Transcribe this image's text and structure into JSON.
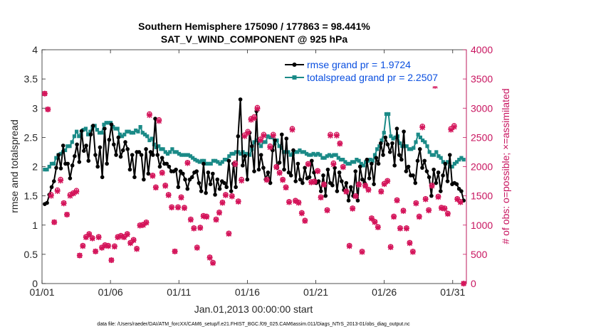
{
  "chart_data": {
    "type": "line",
    "title_line1": "Southern Hemisphere 175090 / 177863 = 98.441%",
    "title_line2": "SAT_V_WIND_COMPONENT @ 925 hPa",
    "ylabel_left": "rmse and totalspread",
    "ylabel_right": "# of obs: o=possible; ×=assimilated",
    "xlabel": "Jan.01,2013 00:00:00 start",
    "footnote": "data file: /Users/raeder/DAI/ATM_forcXX/CAM6_setup/f.e21.FHIST_BGC.f09_025.CAM6assim.011/Diags_NTrS_2013-01/obs_diag_output.nc",
    "x_ticks": [
      "01/01",
      "01/06",
      "01/11",
      "01/16",
      "01/21",
      "01/26",
      "01/31"
    ],
    "x_tick_days": [
      1,
      6,
      11,
      16,
      21,
      26,
      31
    ],
    "xlim": [
      1,
      32
    ],
    "yleft_ticks": [
      "0",
      "0.5",
      "1",
      "1.5",
      "2",
      "2.5",
      "3",
      "3.5",
      "4"
    ],
    "yleft_lim": [
      0,
      4
    ],
    "yright_ticks": [
      "0",
      "500",
      "1000",
      "1500",
      "2000",
      "2500",
      "3000",
      "3500",
      "4000"
    ],
    "yright_lim": [
      0,
      4000
    ],
    "legend": [
      {
        "label": "rmse grand pr = 1.9724",
        "color": "#000000"
      },
      {
        "label": "totalspread grand pr = 2.2507",
        "color": "#1a8a87"
      }
    ],
    "colors": {
      "rmse": "#000000",
      "spread": "#1a8a87",
      "obs": "#d4145a",
      "legend_text": "#0a4fe0",
      "right_axis": "#c8145f"
    },
    "series": [
      {
        "name": "rmse",
        "values": [
          1.36,
          1.38,
          1.52,
          1.65,
          1.75,
          1.98,
          2.2,
          1.97,
          2.36,
          2.05,
          2.05,
          1.8,
          2.02,
          2.18,
          2.38,
          2.08,
          2.61,
          2.27,
          2.36,
          2.1,
          2.55,
          2.7,
          2.2,
          2.0,
          2.33,
          1.82,
          2.65,
          2.05,
          2.46,
          2.72,
          2.38,
          2.2,
          2.5,
          2.17,
          2.28,
          2.42,
          2.3,
          1.95,
          2.2,
          1.82,
          2.25,
          2.25,
          2.2,
          1.78,
          2.3,
          1.88,
          2.25,
          2.2,
          2.82,
          2.2,
          2.0,
          2.15,
          2.05,
          2.05,
          2.0,
          1.92,
          1.92,
          1.95,
          1.65,
          1.92,
          1.88,
          1.78,
          1.62,
          1.78,
          1.82,
          1.9,
          1.92,
          1.72,
          1.58,
          2.05,
          1.55,
          1.9,
          1.7,
          1.88,
          1.52,
          1.78,
          1.62,
          1.75,
          1.72,
          1.65,
          2.1,
          1.58,
          2.05,
          1.65,
          2.52,
          3.15,
          2.02,
          2.18,
          1.78,
          2.58,
          2.35,
          1.92,
          2.95,
          1.95,
          2.2,
          1.98,
          1.78,
          1.9,
          1.72,
          2.28,
          2.45,
          1.98,
          2.07,
          2.55,
          1.95,
          2.48,
          1.9,
          1.85,
          2.28,
          1.75,
          2.05,
          1.78,
          1.72,
          1.98,
          1.8,
          1.82,
          2.1,
          1.9,
          1.72,
          1.75,
          1.58,
          1.85,
          1.5,
          1.95,
          1.72,
          1.68,
          1.98,
          1.58,
          1.9,
          1.75,
          1.6,
          1.72,
          1.42,
          1.65,
          1.5,
          1.92,
          1.42,
          2.0,
          1.78,
          1.72,
          2.12,
          1.8,
          2.05,
          1.7,
          2.15,
          2.05,
          2.4,
          2.2,
          2.5,
          2.38,
          2.25,
          2.4,
          2.02,
          2.65,
          2.2,
          2.12,
          2.6,
          1.92,
          2.0,
          1.85,
          1.85,
          1.72,
          2.1,
          2.3,
          1.98,
          2.1,
          1.92,
          1.82,
          1.5,
          1.95,
          1.72,
          1.9,
          1.58,
          1.85,
          2.05,
          1.75,
          2.2,
          1.7,
          1.72,
          1.7,
          1.62,
          1.58,
          1.42
        ]
      },
      {
        "name": "totalspread",
        "values": [
          1.95,
          1.95,
          2.0,
          2.05,
          2.05,
          2.15,
          2.2,
          2.22,
          2.25,
          2.28,
          2.35,
          2.35,
          2.42,
          2.52,
          2.6,
          2.52,
          2.55,
          2.63,
          2.65,
          2.55,
          2.6,
          2.68,
          2.7,
          2.63,
          2.58,
          2.58,
          2.72,
          2.75,
          2.75,
          2.75,
          2.68,
          2.65,
          2.65,
          2.55,
          2.52,
          2.55,
          2.6,
          2.6,
          2.58,
          2.58,
          2.62,
          2.6,
          2.68,
          2.58,
          2.55,
          2.52,
          2.45,
          2.48,
          2.38,
          2.33,
          2.35,
          2.3,
          2.3,
          2.25,
          2.22,
          2.25,
          2.3,
          2.25,
          2.25,
          2.22,
          2.2,
          2.2,
          2.2,
          2.2,
          2.18,
          2.15,
          2.12,
          2.1,
          2.08,
          2.1,
          2.1,
          2.05,
          2.05,
          2.05,
          2.1,
          2.1,
          2.08,
          2.05,
          2.08,
          2.12,
          2.12,
          2.18,
          2.22,
          2.22,
          2.25,
          2.25,
          2.22,
          2.25,
          2.22,
          2.22,
          2.2,
          2.3,
          2.42,
          2.45,
          2.4,
          2.35,
          2.42,
          2.42,
          2.52,
          2.5,
          2.5,
          2.4,
          2.45,
          2.35,
          2.32,
          2.25,
          2.25,
          2.25,
          2.2,
          2.22,
          2.25,
          2.25,
          2.28,
          2.25,
          2.25,
          2.22,
          2.2,
          2.2,
          2.22,
          2.2,
          2.22,
          2.2,
          2.15,
          2.15,
          2.18,
          2.2,
          2.18,
          2.2,
          2.2,
          2.15,
          2.12,
          2.12,
          2.08,
          2.05,
          2.05,
          2.08,
          2.08,
          2.12,
          2.1,
          2.05,
          2.02,
          2.08,
          2.1,
          2.12,
          2.1,
          2.2,
          2.3,
          2.35,
          2.45,
          2.58,
          2.9,
          2.9,
          2.52,
          2.48,
          2.5,
          2.52,
          2.4,
          2.35,
          2.35,
          2.35,
          2.3,
          2.3,
          2.32,
          2.42,
          2.55,
          2.5,
          2.45,
          2.42,
          2.35,
          2.25,
          2.2,
          2.2,
          2.25,
          2.18,
          2.15,
          2.08,
          2.05,
          2.08,
          2.0,
          2.0,
          2.05,
          2.08,
          2.12,
          2.15,
          2.12
        ]
      },
      {
        "name": "obs_possible",
        "values": [
          3250,
          2980,
          1520,
          1050,
          1600,
          1780,
          1380,
          1180,
          1520,
          1550,
          1590,
          480,
          650,
          800,
          850,
          780,
          550,
          800,
          620,
          660,
          650,
          400,
          640,
          800,
          820,
          800,
          850,
          700,
          750,
          600,
          1000,
          1010,
          1050,
          2900,
          1850,
          1650,
          2800,
          1900,
          1680,
          1520,
          1310,
          550,
          1310,
          1480,
          1300,
          2070,
          1100,
          950,
          620,
          960,
          1160,
          1150,
          450,
          360,
          1100,
          1220,
          1390,
          1520,
          860,
          1500,
          2060,
          1410,
          1780,
          2540,
          2600,
          2820,
          2850,
          3010,
          2470,
          2550,
          1780,
          2350,
          2550,
          2000,
          1900,
          1780,
          1650,
          1400,
          2650,
          1420,
          1390,
          1210,
          1080,
          2050,
          1740,
          1750,
          1930,
          1480,
          1700,
          1260,
          2550,
          2060,
          2550,
          2400,
          2000,
          1580,
          650,
          1290,
          1500,
          1700,
          550,
          1680,
          1610,
          1120,
          1060,
          970,
          1580,
          1710,
          1760,
          630,
          1150,
          1430,
          950,
          1250,
          950,
          700,
          550,
          1380,
          1150,
          2690,
          1450,
          1260,
          1680,
          3400,
          1490,
          1300,
          1290,
          1200,
          2650,
          2700,
          1450,
          1400,
          0
        ]
      },
      {
        "name": "obs_assimilated",
        "values": [
          3250,
          2980,
          1500,
          1050,
          1580,
          1760,
          1370,
          1180,
          1500,
          1540,
          1570,
          480,
          640,
          790,
          840,
          770,
          550,
          790,
          610,
          650,
          640,
          400,
          630,
          790,
          810,
          790,
          840,
          690,
          740,
          590,
          990,
          1000,
          1040,
          2880,
          1840,
          1640,
          2780,
          1890,
          1670,
          1510,
          1300,
          550,
          1300,
          1470,
          1290,
          2060,
          1090,
          940,
          610,
          950,
          1150,
          1140,
          440,
          350,
          1090,
          1210,
          1380,
          1510,
          850,
          1490,
          2040,
          1400,
          1760,
          2520,
          2580,
          2800,
          2830,
          2990,
          2450,
          2530,
          1770,
          2330,
          2530,
          1990,
          1890,
          1770,
          1640,
          1390,
          2630,
          1410,
          1380,
          1200,
          1070,
          2040,
          1730,
          1740,
          1920,
          1470,
          1690,
          1250,
          2530,
          2040,
          2530,
          2390,
          1990,
          1570,
          640,
          1280,
          1490,
          1690,
          540,
          1670,
          1600,
          1110,
          1050,
          960,
          1570,
          1700,
          1750,
          620,
          1140,
          1420,
          940,
          1240,
          940,
          690,
          540,
          1370,
          1140,
          2670,
          1440,
          1250,
          1670,
          3380,
          1480,
          1290,
          1280,
          1190,
          2630,
          2680,
          1440,
          1390,
          0
        ]
      }
    ]
  }
}
